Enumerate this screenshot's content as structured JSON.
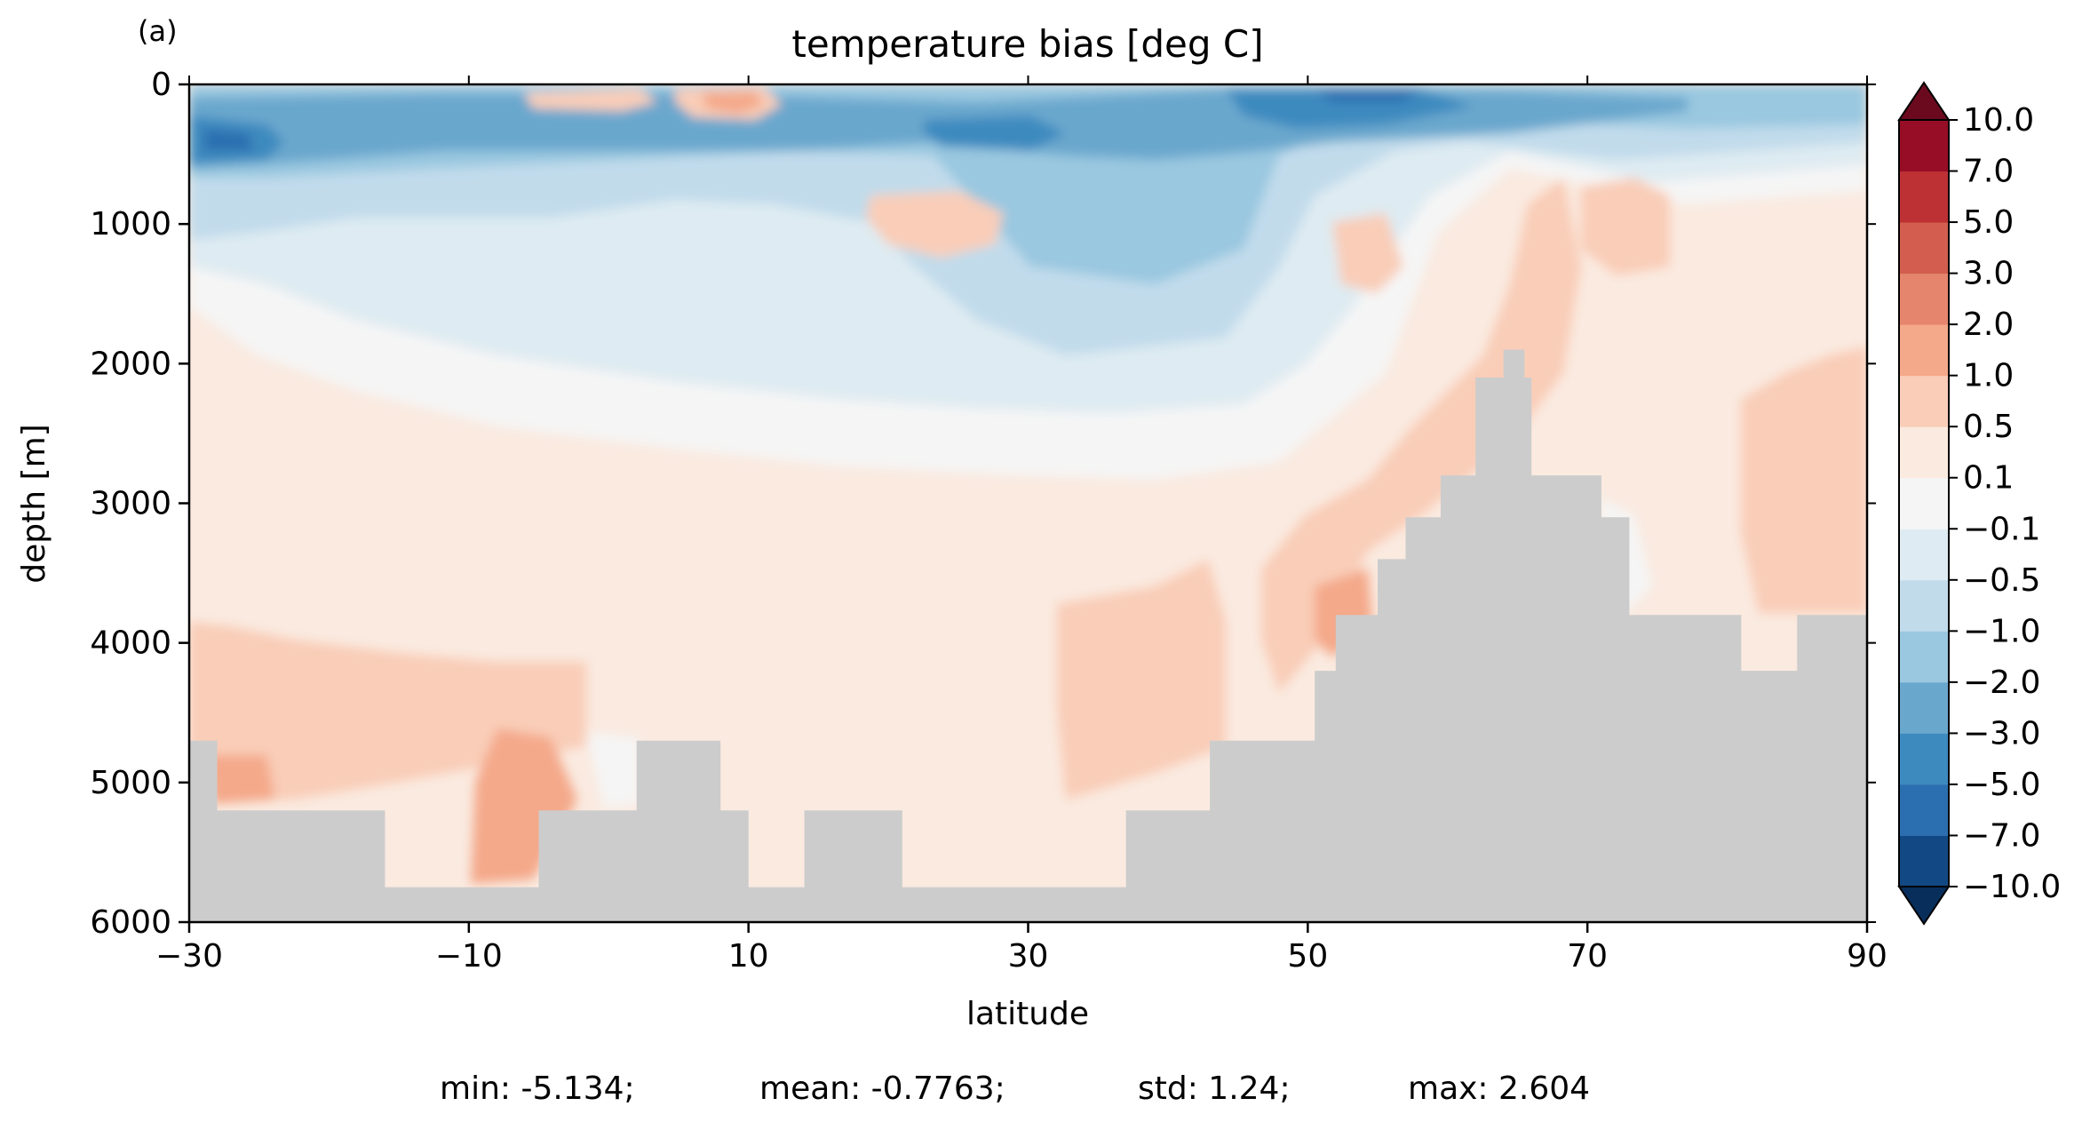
{
  "panel_label": "(a)",
  "chart_data": {
    "type": "heatmap",
    "title": "temperature bias [deg C]",
    "xlabel": "latitude",
    "ylabel": "depth [m]",
    "xlim": [
      -30,
      90
    ],
    "ylim": [
      6000,
      0
    ],
    "xticks": [
      -30,
      -10,
      10,
      30,
      50,
      70,
      90
    ],
    "xtick_labels": [
      "−30",
      "−10",
      "10",
      "30",
      "50",
      "70",
      "90"
    ],
    "yticks": [
      0,
      1000,
      2000,
      3000,
      4000,
      5000,
      6000
    ],
    "ytick_labels": [
      "0",
      "1000",
      "2000",
      "3000",
      "4000",
      "5000",
      "6000"
    ],
    "colorbar": {
      "levels": [
        -10.0,
        -7.0,
        -5.0,
        -3.0,
        -2.0,
        -1.0,
        -0.5,
        -0.1,
        0.1,
        0.5,
        1.0,
        2.0,
        3.0,
        5.0,
        7.0,
        10.0
      ],
      "tick_labels": [
        "−10.0",
        "−7.0",
        "−5.0",
        "−3.0",
        "−2.0",
        "−1.0",
        "−0.5",
        "−0.1",
        "0.1",
        "0.5",
        "1.0",
        "2.0",
        "3.0",
        "5.0",
        "7.0",
        "10.0"
      ],
      "colors": [
        "#124984",
        "#2c6fb0",
        "#3d8abf",
        "#6aa7cd",
        "#9ac8e0",
        "#c1dbeb",
        "#deebf2",
        "#f5f5f5",
        "#faeae0",
        "#f9cdb8",
        "#f4a98a",
        "#e6856d",
        "#d35e50",
        "#bd3135",
        "#980d26"
      ],
      "under_color": "#082e5c",
      "over_color": "#6b0a1f",
      "extend": "both"
    },
    "land_color": "#cccccc",
    "bathymetry_depth_m": [
      {
        "lat": -30,
        "depth": 4700
      },
      {
        "lat": -28,
        "depth": 4700
      },
      {
        "lat": -28,
        "depth": 5200
      },
      {
        "lat": -16,
        "depth": 5200
      },
      {
        "lat": -16,
        "depth": 5750
      },
      {
        "lat": -5,
        "depth": 5750
      },
      {
        "lat": -5,
        "depth": 5200
      },
      {
        "lat": 2,
        "depth": 5200
      },
      {
        "lat": 2,
        "depth": 4700
      },
      {
        "lat": 8,
        "depth": 4700
      },
      {
        "lat": 8,
        "depth": 5200
      },
      {
        "lat": 10,
        "depth": 5200
      },
      {
        "lat": 10,
        "depth": 5750
      },
      {
        "lat": 14,
        "depth": 5750
      },
      {
        "lat": 14,
        "depth": 5200
      },
      {
        "lat": 21,
        "depth": 5200
      },
      {
        "lat": 21,
        "depth": 5750
      },
      {
        "lat": 37,
        "depth": 5750
      },
      {
        "lat": 37,
        "depth": 5200
      },
      {
        "lat": 43,
        "depth": 5200
      },
      {
        "lat": 43,
        "depth": 4700
      },
      {
        "lat": 50.5,
        "depth": 4700
      },
      {
        "lat": 50.5,
        "depth": 4200
      },
      {
        "lat": 52,
        "depth": 4200
      },
      {
        "lat": 52,
        "depth": 3800
      },
      {
        "lat": 55,
        "depth": 3800
      },
      {
        "lat": 55,
        "depth": 3400
      },
      {
        "lat": 57,
        "depth": 3400
      },
      {
        "lat": 57,
        "depth": 3100
      },
      {
        "lat": 59.5,
        "depth": 3100
      },
      {
        "lat": 59.5,
        "depth": 2800
      },
      {
        "lat": 62,
        "depth": 2800
      },
      {
        "lat": 62,
        "depth": 2100
      },
      {
        "lat": 64,
        "depth": 2100
      },
      {
        "lat": 64,
        "depth": 1900
      },
      {
        "lat": 65.5,
        "depth": 1900
      },
      {
        "lat": 65.5,
        "depth": 2100
      },
      {
        "lat": 66,
        "depth": 2100
      },
      {
        "lat": 66,
        "depth": 2800
      },
      {
        "lat": 71,
        "depth": 2800
      },
      {
        "lat": 71,
        "depth": 3100
      },
      {
        "lat": 73,
        "depth": 3100
      },
      {
        "lat": 73,
        "depth": 3800
      },
      {
        "lat": 81,
        "depth": 3800
      },
      {
        "lat": 81,
        "depth": 4200
      },
      {
        "lat": 85,
        "depth": 4200
      },
      {
        "lat": 85,
        "depth": 3800
      },
      {
        "lat": 90,
        "depth": 3800
      }
    ],
    "stats": {
      "min": "min: -5.134;",
      "mean": "mean: -0.7763;",
      "std": "std: 1.24;",
      "max": "max: 2.604"
    }
  }
}
